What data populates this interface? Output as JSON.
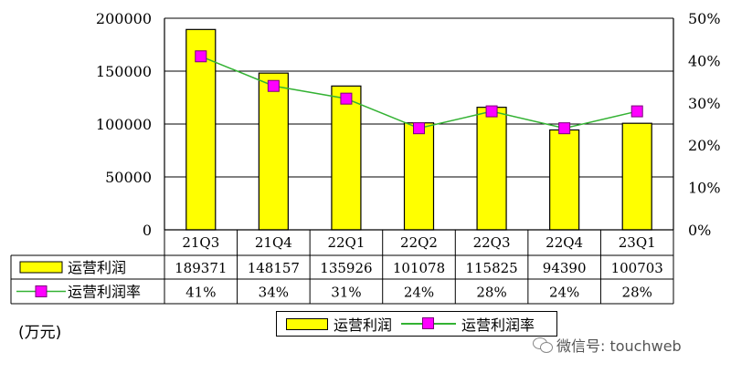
{
  "chart_data": {
    "type": "bar",
    "categories": [
      "21Q3",
      "21Q4",
      "22Q1",
      "22Q2",
      "22Q3",
      "22Q4",
      "23Q1"
    ],
    "series": [
      {
        "name": "运营利润",
        "kind": "bar",
        "axis": "left",
        "values": [
          189371,
          148157,
          135926,
          101078,
          115825,
          94390,
          100703
        ],
        "labels": [
          "189371",
          "148157",
          "135926",
          "101078",
          "115825",
          "94390",
          "100703"
        ],
        "color": "#ffff00"
      },
      {
        "name": "运营利润率",
        "kind": "line",
        "axis": "right",
        "values": [
          0.41,
          0.34,
          0.31,
          0.24,
          0.28,
          0.24,
          0.28
        ],
        "labels": [
          "41%",
          "34%",
          "31%",
          "24%",
          "28%",
          "24%",
          "28%"
        ],
        "color": "#33b233",
        "marker_color": "#ff00ff"
      }
    ],
    "left_axis": {
      "ylim": [
        0,
        200000
      ],
      "ticks": [
        "0",
        "50000",
        "100000",
        "150000",
        "200000"
      ]
    },
    "right_axis": {
      "ylim": [
        0,
        0.5
      ],
      "ticks": [
        "0%",
        "10%",
        "20%",
        "30%",
        "40%",
        "50%"
      ]
    },
    "grid": "horizontal",
    "legend_position": "bottom-center",
    "unit_label": "(万元)"
  },
  "watermark": {
    "text": "微信号: touchweb",
    "icon": "wechat-icon"
  }
}
